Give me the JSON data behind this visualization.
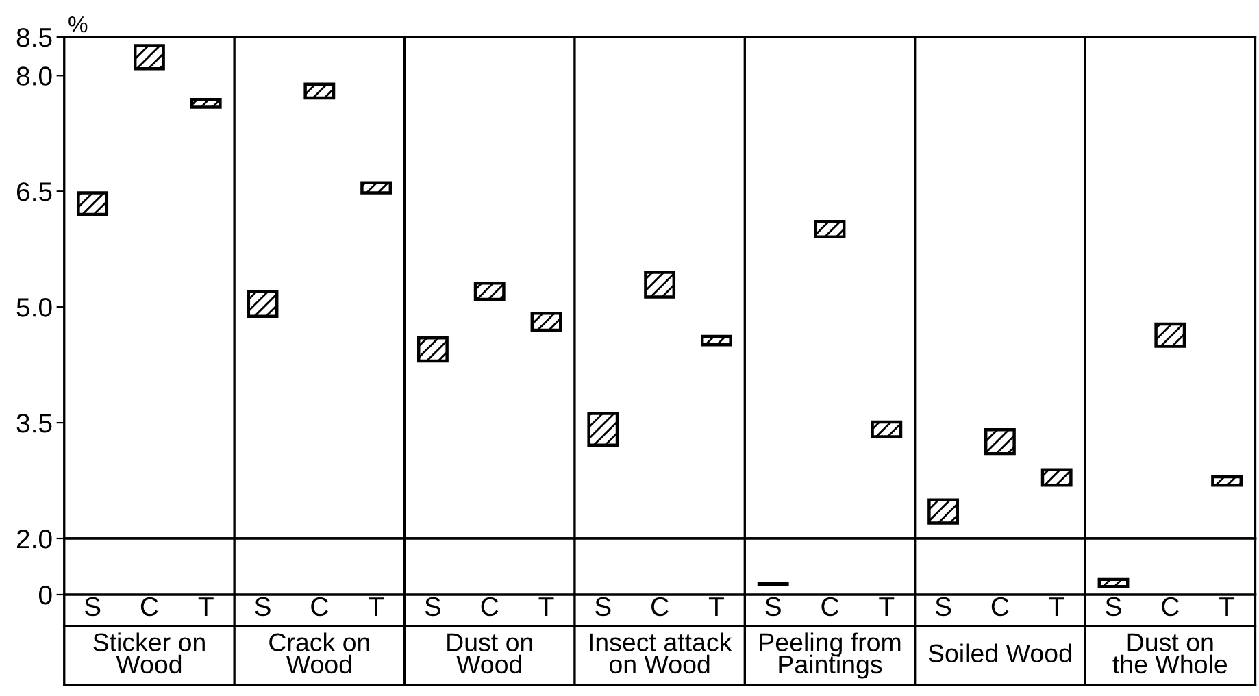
{
  "chart_data": [
    {
      "type": "bar",
      "ylabel": "%",
      "categories": [
        null,
        null,
        null,
        null,
        null,
        null,
        null,
        null,
        null,
        null,
        null,
        null,
        null,
        null,
        null,
        null,
        null,
        null,
        null,
        null,
        null
      ],
      "base": [
        6.2,
        8.09,
        7.59,
        4.88,
        7.71,
        6.48,
        4.3,
        5.1,
        4.7,
        3.21,
        5.13,
        4.51,
        null,
        5.91,
        3.32,
        2.2,
        3.1,
        2.69,
        null,
        4.49,
        2.69
      ],
      "values": [
        0.28,
        0.3,
        0.1,
        0.32,
        0.18,
        0.13,
        0.3,
        0.21,
        0.22,
        0.41,
        0.32,
        0.11,
        null,
        0.2,
        0.19,
        0.3,
        0.31,
        0.2,
        null,
        0.29,
        0.11
      ],
      "color": "#000000",
      "ylim": [
        2,
        8.5
      ],
      "yticks": [
        {
          "value": 3.5,
          "label": "3.5"
        },
        {
          "value": 5.0,
          "label": "5.0"
        },
        {
          "value": 6.5,
          "label": "6.5"
        },
        {
          "value": 8.0,
          "label": "8.0"
        },
        8.5
      ],
      "tick_labels": "y"
    },
    {
      "type": "bar",
      "categories": [
        "S",
        "C",
        "T",
        "S",
        "C",
        "T",
        "S",
        "C",
        "T",
        "S",
        "C",
        "T",
        "S",
        "C",
        "T",
        "S",
        "C",
        "T",
        "S",
        "C",
        "T"
      ],
      "base": [
        null,
        null,
        null,
        null,
        null,
        null,
        null,
        null,
        null,
        null,
        null,
        null,
        0.37,
        null,
        null,
        null,
        null,
        null,
        0.29,
        null,
        null
      ],
      "values": [
        null,
        null,
        null,
        null,
        null,
        null,
        null,
        null,
        null,
        null,
        null,
        null,
        0.04,
        null,
        null,
        null,
        null,
        null,
        0.25,
        null,
        null
      ],
      "color": "#000000",
      "ylim": [
        0,
        2
      ],
      "yticks": [
        0,
        {
          "value": 2,
          "label": "2.0"
        }
      ],
      "annotations": [
        "Sticker on\nWood",
        "Crack on\nWood",
        "Dust on\nWood",
        "Insect attack\non Wood",
        "Peeling from\nPaintings",
        "Soiled Wood",
        "Dust on\nthe Whole"
      ]
    }
  ]
}
